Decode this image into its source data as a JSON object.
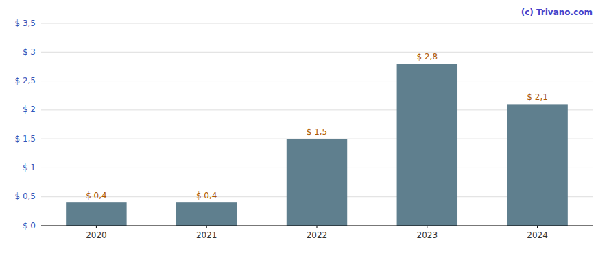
{
  "chart_data": {
    "type": "bar",
    "categories": [
      "2020",
      "2021",
      "2022",
      "2023",
      "2024"
    ],
    "values": [
      0.4,
      0.4,
      1.5,
      2.8,
      2.1
    ],
    "value_labels": [
      "$ 0,4",
      "$ 0,4",
      "$ 1,5",
      "$ 2,8",
      "$ 2,1"
    ],
    "data_labels": true,
    "color": "#5f7f8e",
    "ylim": [
      0,
      3.5
    ],
    "yticks": [
      {
        "value": 0,
        "label": "$ 0"
      },
      {
        "value": 0.5,
        "label": "$ 0,5"
      },
      {
        "value": 1.0,
        "label": "$ 1"
      },
      {
        "value": 1.5,
        "label": "$ 1,5"
      },
      {
        "value": 2.0,
        "label": "$ 2"
      },
      {
        "value": 2.5,
        "label": "$ 2,5"
      },
      {
        "value": 3.0,
        "label": "$ 3"
      },
      {
        "value": 3.5,
        "label": "$ 3,5"
      }
    ],
    "grid": true,
    "annotations": [
      "(c) Trivano.com"
    ]
  }
}
